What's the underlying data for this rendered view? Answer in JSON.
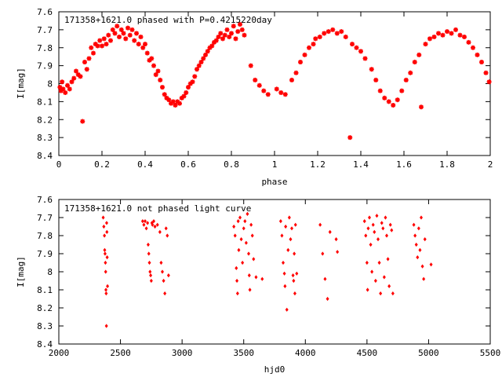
{
  "chart_data": [
    {
      "type": "scatter",
      "title": "171358+1621.0 phased with P=0.4215220day",
      "xlabel": "phase",
      "ylabel": "I[mag]",
      "xlim": [
        0,
        2
      ],
      "ylim": [
        8.4,
        7.6
      ],
      "y_inverted": true,
      "grid": false,
      "marker_color": "#ff0000",
      "marker": "star",
      "x_ticks": [
        0,
        0.2,
        0.4,
        0.6,
        0.8,
        1,
        1.2,
        1.4,
        1.6,
        1.8,
        2
      ],
      "x_tick_labels": [
        "0",
        "0.2",
        "0.4",
        "0.6",
        "0.8",
        "1",
        "1.2",
        "1.4",
        "1.6",
        "1.8",
        "2"
      ],
      "y_ticks": [
        7.6,
        7.7,
        7.8,
        7.9,
        8,
        8.1,
        8.2,
        8.3,
        8.4
      ],
      "y_tick_labels": [
        "7.6",
        "7.7",
        "7.8",
        "7.9",
        "8",
        "8.1",
        "8.2",
        "8.3",
        "8.4"
      ],
      "points": [
        [
          0.005,
          8.02
        ],
        [
          0.01,
          8.04
        ],
        [
          0.015,
          7.99
        ],
        [
          0.02,
          8.03
        ],
        [
          0.03,
          8.05
        ],
        [
          0.04,
          8.01
        ],
        [
          0.05,
          8.03
        ],
        [
          0.06,
          7.99
        ],
        [
          0.07,
          7.97
        ],
        [
          0.08,
          7.93
        ],
        [
          0.09,
          7.95
        ],
        [
          0.1,
          7.96
        ],
        [
          0.11,
          8.21
        ],
        [
          0.12,
          7.88
        ],
        [
          0.13,
          7.92
        ],
        [
          0.14,
          7.86
        ],
        [
          0.15,
          7.8
        ],
        [
          0.16,
          7.83
        ],
        [
          0.17,
          7.78
        ],
        [
          0.18,
          7.79
        ],
        [
          0.19,
          7.76
        ],
        [
          0.2,
          7.79
        ],
        [
          0.21,
          7.75
        ],
        [
          0.22,
          7.78
        ],
        [
          0.23,
          7.73
        ],
        [
          0.24,
          7.76
        ],
        [
          0.25,
          7.7
        ],
        [
          0.26,
          7.72
        ],
        [
          0.27,
          7.68
        ],
        [
          0.28,
          7.74
        ],
        [
          0.29,
          7.7
        ],
        [
          0.3,
          7.72
        ],
        [
          0.31,
          7.75
        ],
        [
          0.32,
          7.69
        ],
        [
          0.33,
          7.73
        ],
        [
          0.34,
          7.7
        ],
        [
          0.35,
          7.76
        ],
        [
          0.36,
          7.72
        ],
        [
          0.37,
          7.78
        ],
        [
          0.38,
          7.74
        ],
        [
          0.39,
          7.8
        ],
        [
          0.4,
          7.78
        ],
        [
          0.41,
          7.83
        ],
        [
          0.42,
          7.87
        ],
        [
          0.43,
          7.86
        ],
        [
          0.44,
          7.9
        ],
        [
          0.45,
          7.95
        ],
        [
          0.46,
          7.93
        ],
        [
          0.47,
          7.98
        ],
        [
          0.48,
          8.02
        ],
        [
          0.49,
          8.06
        ],
        [
          0.5,
          8.08
        ],
        [
          0.51,
          8.09
        ],
        [
          0.52,
          8.11
        ],
        [
          0.53,
          8.1
        ],
        [
          0.54,
          8.12
        ],
        [
          0.55,
          8.1
        ],
        [
          0.56,
          8.11
        ],
        [
          0.57,
          8.08
        ],
        [
          0.58,
          8.07
        ],
        [
          0.59,
          8.05
        ],
        [
          0.6,
          8.02
        ],
        [
          0.61,
          8.0
        ],
        [
          0.62,
          7.99
        ],
        [
          0.63,
          7.96
        ],
        [
          0.64,
          7.92
        ],
        [
          0.65,
          7.9
        ],
        [
          0.66,
          7.88
        ],
        [
          0.67,
          7.86
        ],
        [
          0.68,
          7.84
        ],
        [
          0.69,
          7.82
        ],
        [
          0.7,
          7.8
        ],
        [
          0.71,
          7.79
        ],
        [
          0.72,
          7.77
        ],
        [
          0.73,
          7.76
        ],
        [
          0.74,
          7.74
        ],
        [
          0.75,
          7.72
        ],
        [
          0.76,
          7.75
        ],
        [
          0.77,
          7.73
        ],
        [
          0.78,
          7.7
        ],
        [
          0.79,
          7.74
        ],
        [
          0.8,
          7.72
        ],
        [
          0.81,
          7.68
        ],
        [
          0.82,
          7.75
        ],
        [
          0.83,
          7.71
        ],
        [
          0.84,
          7.67
        ],
        [
          0.85,
          7.7
        ],
        [
          0.86,
          7.73
        ],
        [
          0.89,
          7.9
        ],
        [
          0.91,
          7.98
        ],
        [
          0.93,
          8.01
        ],
        [
          0.95,
          8.04
        ],
        [
          0.97,
          8.06
        ],
        [
          1.01,
          8.03
        ],
        [
          1.03,
          8.05
        ],
        [
          1.05,
          8.06
        ],
        [
          1.08,
          7.98
        ],
        [
          1.1,
          7.94
        ],
        [
          1.12,
          7.88
        ],
        [
          1.14,
          7.84
        ],
        [
          1.16,
          7.8
        ],
        [
          1.18,
          7.78
        ],
        [
          1.19,
          7.75
        ],
        [
          1.21,
          7.74
        ],
        [
          1.23,
          7.72
        ],
        [
          1.25,
          7.71
        ],
        [
          1.27,
          7.7
        ],
        [
          1.29,
          7.72
        ],
        [
          1.31,
          7.71
        ],
        [
          1.33,
          7.74
        ],
        [
          1.35,
          8.3
        ],
        [
          1.36,
          7.78
        ],
        [
          1.38,
          7.8
        ],
        [
          1.4,
          7.82
        ],
        [
          1.42,
          7.86
        ],
        [
          1.45,
          7.92
        ],
        [
          1.47,
          7.98
        ],
        [
          1.49,
          8.04
        ],
        [
          1.51,
          8.08
        ],
        [
          1.53,
          8.1
        ],
        [
          1.55,
          8.12
        ],
        [
          1.57,
          8.09
        ],
        [
          1.59,
          8.04
        ],
        [
          1.61,
          7.98
        ],
        [
          1.63,
          7.94
        ],
        [
          1.65,
          7.88
        ],
        [
          1.67,
          7.84
        ],
        [
          1.68,
          8.13
        ],
        [
          1.7,
          7.78
        ],
        [
          1.72,
          7.75
        ],
        [
          1.74,
          7.74
        ],
        [
          1.76,
          7.72
        ],
        [
          1.78,
          7.73
        ],
        [
          1.8,
          7.71
        ],
        [
          1.82,
          7.72
        ],
        [
          1.84,
          7.7
        ],
        [
          1.86,
          7.73
        ],
        [
          1.88,
          7.74
        ],
        [
          1.9,
          7.77
        ],
        [
          1.92,
          7.8
        ],
        [
          1.94,
          7.84
        ],
        [
          1.96,
          7.88
        ],
        [
          1.98,
          7.94
        ],
        [
          1.995,
          7.99
        ]
      ]
    },
    {
      "type": "scatter",
      "title": "171358+1621.0 not phased light curve",
      "xlabel": "hjd0",
      "ylabel": "I[mag]",
      "xlim": [
        2000,
        5500
      ],
      "ylim": [
        8.4,
        7.6
      ],
      "y_inverted": true,
      "grid": false,
      "marker_color": "#ff0000",
      "marker": "diamond",
      "x_ticks": [
        2000,
        2500,
        3000,
        3500,
        4000,
        4500,
        5000,
        5500
      ],
      "x_tick_labels": [
        "2000",
        "2500",
        "3000",
        "3500",
        "4000",
        "4500",
        "5000",
        "5500"
      ],
      "y_ticks": [
        7.6,
        7.7,
        7.8,
        7.9,
        8,
        8.1,
        8.2,
        8.3,
        8.4
      ],
      "y_tick_labels": [
        "7.6",
        "7.7",
        "7.8",
        "7.9",
        "8",
        "8.1",
        "8.2",
        "8.3",
        "8.4"
      ],
      "points": [
        [
          2360,
          7.7
        ],
        [
          2365,
          7.75
        ],
        [
          2370,
          7.8
        ],
        [
          2372,
          7.88
        ],
        [
          2375,
          7.9
        ],
        [
          2378,
          7.95
        ],
        [
          2380,
          8.0
        ],
        [
          2382,
          8.1
        ],
        [
          2384,
          8.12
        ],
        [
          2386,
          8.3
        ],
        [
          2388,
          7.73
        ],
        [
          2390,
          7.78
        ],
        [
          2392,
          7.92
        ],
        [
          2395,
          8.08
        ],
        [
          2680,
          7.72
        ],
        [
          2690,
          7.74
        ],
        [
          2700,
          7.72
        ],
        [
          2710,
          7.76
        ],
        [
          2720,
          7.73
        ],
        [
          2725,
          7.85
        ],
        [
          2730,
          7.9
        ],
        [
          2735,
          7.95
        ],
        [
          2740,
          8.0
        ],
        [
          2745,
          8.02
        ],
        [
          2750,
          8.05
        ],
        [
          2755,
          7.73
        ],
        [
          2760,
          7.74
        ],
        [
          2770,
          7.72
        ],
        [
          2780,
          7.75
        ],
        [
          2800,
          7.74
        ],
        [
          2820,
          7.78
        ],
        [
          2830,
          7.95
        ],
        [
          2840,
          8.0
        ],
        [
          2850,
          8.05
        ],
        [
          2860,
          8.12
        ],
        [
          2870,
          7.76
        ],
        [
          2880,
          7.8
        ],
        [
          2890,
          8.02
        ],
        [
          3420,
          7.75
        ],
        [
          3430,
          7.8
        ],
        [
          3440,
          7.98
        ],
        [
          3445,
          8.05
        ],
        [
          3450,
          8.12
        ],
        [
          3455,
          7.72
        ],
        [
          3460,
          7.88
        ],
        [
          3470,
          7.7
        ],
        [
          3480,
          7.82
        ],
        [
          3490,
          7.95
        ],
        [
          3500,
          7.76
        ],
        [
          3510,
          7.72
        ],
        [
          3520,
          7.84
        ],
        [
          3530,
          7.68
        ],
        [
          3540,
          7.9
        ],
        [
          3545,
          8.02
        ],
        [
          3550,
          8.1
        ],
        [
          3560,
          7.74
        ],
        [
          3570,
          7.8
        ],
        [
          3580,
          7.93
        ],
        [
          3600,
          8.03
        ],
        [
          3650,
          8.04
        ],
        [
          3800,
          7.72
        ],
        [
          3810,
          7.8
        ],
        [
          3820,
          7.95
        ],
        [
          3830,
          8.01
        ],
        [
          3835,
          8.08
        ],
        [
          3840,
          7.75
        ],
        [
          3850,
          8.21
        ],
        [
          3860,
          7.88
        ],
        [
          3870,
          7.7
        ],
        [
          3880,
          7.82
        ],
        [
          3890,
          7.76
        ],
        [
          3900,
          8.02
        ],
        [
          3905,
          8.05
        ],
        [
          3910,
          7.9
        ],
        [
          3915,
          8.12
        ],
        [
          3920,
          7.74
        ],
        [
          3930,
          8.01
        ],
        [
          4120,
          7.74
        ],
        [
          4140,
          7.9
        ],
        [
          4160,
          8.04
        ],
        [
          4180,
          8.15
        ],
        [
          4200,
          7.78
        ],
        [
          4250,
          7.82
        ],
        [
          4260,
          7.89
        ],
        [
          4480,
          7.72
        ],
        [
          4490,
          7.8
        ],
        [
          4500,
          7.95
        ],
        [
          4505,
          8.1
        ],
        [
          4510,
          7.76
        ],
        [
          4520,
          7.7
        ],
        [
          4530,
          7.85
        ],
        [
          4540,
          8.0
        ],
        [
          4550,
          7.74
        ],
        [
          4560,
          7.78
        ],
        [
          4570,
          8.05
        ],
        [
          4580,
          7.69
        ],
        [
          4590,
          7.82
        ],
        [
          4600,
          7.95
        ],
        [
          4610,
          8.12
        ],
        [
          4620,
          7.73
        ],
        [
          4630,
          7.76
        ],
        [
          4640,
          8.03
        ],
        [
          4650,
          7.7
        ],
        [
          4660,
          7.8
        ],
        [
          4670,
          7.93
        ],
        [
          4680,
          8.08
        ],
        [
          4690,
          7.74
        ],
        [
          4700,
          7.77
        ],
        [
          4710,
          8.12
        ],
        [
          4880,
          7.74
        ],
        [
          4890,
          7.8
        ],
        [
          4900,
          7.85
        ],
        [
          4910,
          7.92
        ],
        [
          4920,
          7.76
        ],
        [
          4930,
          7.88
        ],
        [
          4940,
          7.7
        ],
        [
          4950,
          7.97
        ],
        [
          4960,
          8.04
        ],
        [
          4970,
          7.82
        ],
        [
          5020,
          7.96
        ]
      ]
    }
  ]
}
